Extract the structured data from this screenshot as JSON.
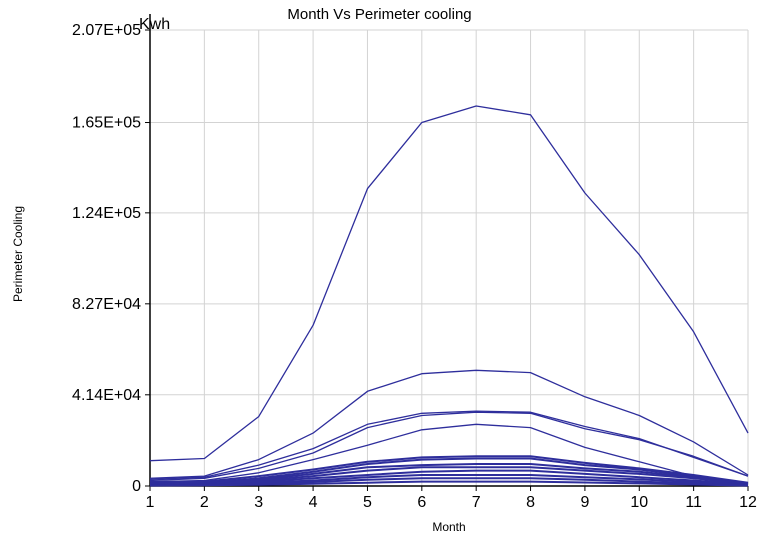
{
  "chart_data": {
    "type": "line",
    "title": "Month Vs Perimeter cooling",
    "xlabel": "Month",
    "ylabel": "Perimeter Cooling",
    "unit_label": "Kwh",
    "x": [
      1,
      2,
      3,
      4,
      5,
      6,
      7,
      8,
      9,
      10,
      11,
      12
    ],
    "xlim": [
      1,
      12
    ],
    "ylim": [
      0,
      207000
    ],
    "yticks": [
      0,
      41400,
      82700,
      124000,
      165000,
      207000
    ],
    "ytick_labels": [
      "0",
      "4.14E+04",
      "8.27E+04",
      "1.24E+05",
      "1.65E+05",
      "2.07E+05"
    ],
    "xtick_labels": [
      "1",
      "2",
      "3",
      "4",
      "5",
      "6",
      "7",
      "8",
      "9",
      "10",
      "11",
      "12"
    ],
    "grid": true,
    "line_color": "#2e2e9c",
    "series": [
      {
        "values": [
          11500,
          12500,
          31500,
          73000,
          135000,
          165000,
          172500,
          168500,
          133000,
          105000,
          70000,
          24000
        ]
      },
      {
        "values": [
          3500,
          4500,
          12000,
          24000,
          43000,
          51000,
          52500,
          51500,
          40500,
          32000,
          20000,
          5000
        ]
      },
      {
        "values": [
          3000,
          4000,
          9500,
          17000,
          28000,
          33000,
          34000,
          33500,
          27000,
          21500,
          13000,
          4500
        ]
      },
      {
        "values": [
          2500,
          3500,
          8000,
          15000,
          26500,
          32000,
          33500,
          33000,
          26000,
          21000,
          13500,
          4500
        ]
      },
      {
        "values": [
          2000,
          2500,
          6000,
          12000,
          18500,
          25500,
          28000,
          26500,
          17500,
          11000,
          4500,
          1500
        ]
      },
      {
        "values": [
          1500,
          2000,
          4500,
          7500,
          11000,
          13000,
          13500,
          13500,
          10500,
          8000,
          5000,
          1500
        ]
      },
      {
        "values": [
          1200,
          1500,
          3500,
          6500,
          10000,
          12000,
          12500,
          12500,
          9500,
          7500,
          4500,
          1200
        ]
      },
      {
        "values": [
          1000,
          1200,
          3000,
          5500,
          8500,
          9500,
          10000,
          10000,
          8000,
          6500,
          4000,
          1000
        ]
      },
      {
        "values": [
          800,
          1000,
          2500,
          4500,
          7000,
          8500,
          8500,
          8500,
          7000,
          5500,
          3500,
          900
        ]
      },
      {
        "values": [
          600,
          800,
          2000,
          3500,
          5000,
          6500,
          7000,
          7000,
          5500,
          4000,
          2500,
          700
        ]
      },
      {
        "values": [
          400,
          600,
          1500,
          2500,
          4000,
          5000,
          5000,
          5000,
          4000,
          3000,
          1800,
          500
        ]
      },
      {
        "values": [
          300,
          400,
          1000,
          1800,
          2800,
          3500,
          3500,
          3500,
          2800,
          2000,
          1200,
          300
        ]
      },
      {
        "values": [
          200,
          300,
          600,
          1000,
          1500,
          2000,
          2000,
          2000,
          1600,
          1200,
          700,
          200
        ]
      }
    ]
  }
}
